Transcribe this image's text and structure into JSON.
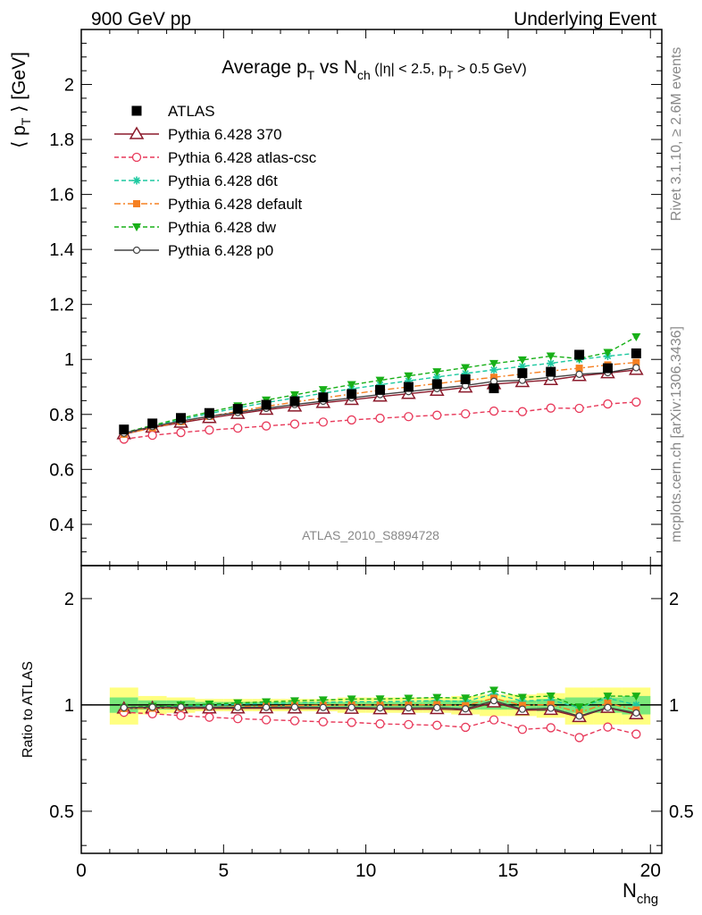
{
  "header": {
    "left": "900 GeV pp",
    "right": "Underlying Event"
  },
  "side": {
    "rivet": "Rivet 3.1.10, ≥ 2.6M events",
    "mcplots": "mcplots.cern.ch [arXiv:1306.3436]"
  },
  "colors": {
    "atlas": "#000000",
    "p370": "#8b1a2b",
    "atlascsc": "#e8395a",
    "d6t": "#1dc9a0",
    "default": "#f58022",
    "dw": "#18b018",
    "p0": "#444444",
    "band_yellow": "#ffff80",
    "band_green": "#7ae87a"
  },
  "chart_data": {
    "type": "line",
    "title": "Average p_T vs N_ch (|η| < 2.5, p_T > 0.5 GeV)",
    "title_parts": {
      "a": "Average p",
      "a_sub": "T",
      "b": " vs N",
      "b_sub": "ch",
      "c": " (|η| < 2.5, p",
      "c_sub": "T",
      "d": " > 0.5 GeV)"
    },
    "ylabel": "⟨ p_T ⟩ [GeV]",
    "ylabel_parts": {
      "a": "⟨ p",
      "sub": "T",
      "b": " ⟩ [GeV]"
    },
    "xlabel": "N_chg",
    "xlabel_parts": {
      "a": "N",
      "sub": "chg"
    },
    "ratio_ylabel": "Ratio to ATLAS",
    "watermark": "ATLAS_2010_S8894728",
    "xlim": [
      0,
      20.4
    ],
    "ylim": [
      0.25,
      2.2
    ],
    "ratio_ylim": [
      0.38,
      2.48
    ],
    "ratio_scale": "log",
    "x_ticks": [
      "0",
      "5",
      "10",
      "15",
      "20"
    ],
    "y_ticks": [
      "0.4",
      "0.6",
      "0.8",
      "1",
      "1.2",
      "1.4",
      "1.6",
      "1.8",
      "2"
    ],
    "ratio_ticks": [
      "0.5",
      "1",
      "2"
    ],
    "x": [
      1.5,
      2.5,
      3.5,
      4.5,
      5.5,
      6.5,
      7.5,
      8.5,
      9.5,
      10.5,
      11.5,
      12.5,
      13.5,
      14.5,
      15.5,
      16.5,
      17.5,
      18.5,
      19.5
    ],
    "band_widths": {
      "edges": [
        1,
        2,
        3,
        4,
        5,
        6,
        7,
        8,
        9,
        10,
        11,
        12,
        13,
        14,
        15,
        16,
        17,
        18,
        19,
        20
      ],
      "yellow": [
        0.12,
        0.06,
        0.05,
        0.04,
        0.04,
        0.04,
        0.04,
        0.04,
        0.05,
        0.05,
        0.05,
        0.05,
        0.06,
        0.07,
        0.07,
        0.08,
        0.12,
        0.12,
        0.12
      ],
      "green": [
        0.05,
        0.03,
        0.03,
        0.02,
        0.02,
        0.02,
        0.02,
        0.02,
        0.02,
        0.02,
        0.02,
        0.03,
        0.03,
        0.03,
        0.03,
        0.04,
        0.05,
        0.05,
        0.06
      ]
    },
    "series": [
      {
        "name": "ATLAS",
        "key": "atlas",
        "marker": "square-filled",
        "line": "none",
        "values": [
          0.745,
          0.767,
          0.787,
          0.805,
          0.82,
          0.835,
          0.848,
          0.862,
          0.874,
          0.889,
          0.9,
          0.91,
          0.928,
          0.895,
          0.95,
          0.955,
          1.017,
          0.968,
          1.022
        ]
      },
      {
        "name": "Pythia 6.428 370",
        "key": "p370",
        "marker": "triangle-open",
        "line": "solid",
        "values": [
          0.728,
          0.752,
          0.77,
          0.787,
          0.802,
          0.817,
          0.829,
          0.842,
          0.853,
          0.865,
          0.875,
          0.886,
          0.898,
          0.91,
          0.918,
          0.925,
          0.94,
          0.95,
          0.962
        ]
      },
      {
        "name": "Pythia 6.428 atlas-csc",
        "key": "atlascsc",
        "marker": "circle-open",
        "line": "dashed",
        "values": [
          0.71,
          0.724,
          0.734,
          0.743,
          0.75,
          0.758,
          0.765,
          0.772,
          0.78,
          0.786,
          0.792,
          0.797,
          0.802,
          0.812,
          0.81,
          0.823,
          0.822,
          0.838,
          0.845
        ]
      },
      {
        "name": "Pythia 6.428 d6t",
        "key": "d6t",
        "marker": "star",
        "line": "dashed",
        "values": [
          0.73,
          0.757,
          0.781,
          0.803,
          0.824,
          0.843,
          0.86,
          0.877,
          0.893,
          0.908,
          0.922,
          0.936,
          0.949,
          0.962,
          0.975,
          0.986,
          1.0,
          1.012,
          1.022
        ]
      },
      {
        "name": "Pythia 6.428 default",
        "key": "default",
        "marker": "square-small",
        "line": "dashdot",
        "values": [
          0.728,
          0.751,
          0.774,
          0.793,
          0.811,
          0.829,
          0.845,
          0.86,
          0.874,
          0.888,
          0.9,
          0.912,
          0.924,
          0.935,
          0.947,
          0.958,
          0.968,
          0.98,
          0.989
        ]
      },
      {
        "name": "Pythia 6.428 dw",
        "key": "dw",
        "marker": "triangle-down-filled",
        "line": "dashed",
        "values": [
          0.733,
          0.76,
          0.786,
          0.809,
          0.831,
          0.852,
          0.871,
          0.89,
          0.908,
          0.924,
          0.94,
          0.955,
          0.97,
          0.985,
          0.998,
          1.012,
          1.003,
          1.025,
          1.082
        ]
      },
      {
        "name": "Pythia 6.428 p0",
        "key": "p0",
        "marker": "circle-open-small",
        "line": "solid",
        "values": [
          0.732,
          0.756,
          0.776,
          0.793,
          0.807,
          0.822,
          0.836,
          0.848,
          0.86,
          0.872,
          0.883,
          0.894,
          0.905,
          0.92,
          0.924,
          0.935,
          0.946,
          0.952,
          0.97
        ]
      }
    ]
  }
}
